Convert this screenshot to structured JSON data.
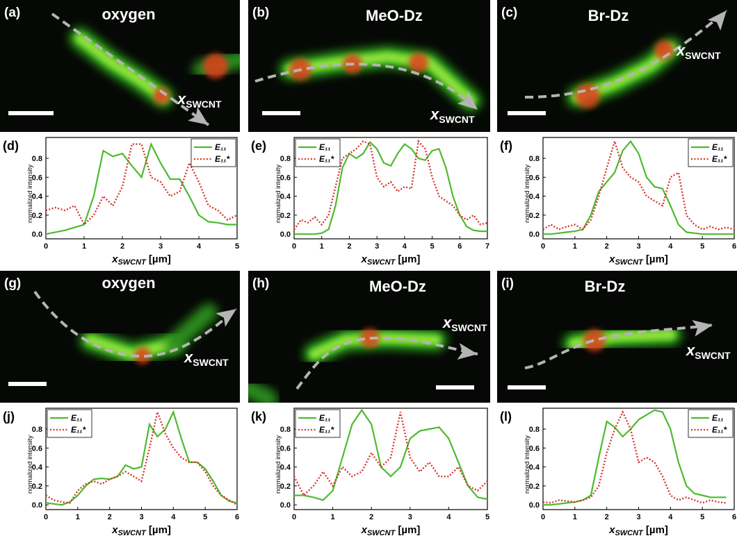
{
  "images": [
    {
      "label": "(a)",
      "title": "oxygen",
      "axis_label": {
        "symbol": "x",
        "subscript": "SWCNT"
      }
    },
    {
      "label": "(b)",
      "title": "MeO-Dz",
      "axis_label": {
        "symbol": "x",
        "subscript": "SWCNT"
      }
    },
    {
      "label": "(c)",
      "title": "Br-Dz",
      "axis_label": {
        "symbol": "x",
        "subscript": "SWCNT"
      }
    },
    {
      "label": "(g)",
      "title": "oxygen",
      "axis_label": {
        "symbol": "x",
        "subscript": "SWCNT"
      }
    },
    {
      "label": "(h)",
      "title": "MeO-Dz",
      "axis_label": {
        "symbol": "x",
        "subscript": "SWCNT"
      }
    },
    {
      "label": "(i)",
      "title": "Br-Dz",
      "axis_label": {
        "symbol": "x",
        "subscript": "SWCNT"
      }
    }
  ],
  "chart_data": [
    {
      "type": "line",
      "panel": "(d)",
      "ylabel": "normalized intensity",
      "xlabel": {
        "symbol": "x",
        "subscript": "SWCNT",
        "unit": " [µm]"
      },
      "x": [
        0,
        0.25,
        0.5,
        0.75,
        1,
        1.25,
        1.5,
        1.75,
        2,
        2.25,
        2.5,
        2.75,
        3,
        3.25,
        3.5,
        3.75,
        4,
        4.25,
        4.5,
        4.75,
        5
      ],
      "series": [
        {
          "name": "E₁₁",
          "color": "#4cba2e",
          "style": "solid",
          "values": [
            0.0,
            0.02,
            0.04,
            0.07,
            0.1,
            0.4,
            0.88,
            0.82,
            0.85,
            0.72,
            0.6,
            0.95,
            0.75,
            0.58,
            0.58,
            0.4,
            0.2,
            0.13,
            0.12,
            0.1,
            0.1
          ]
        },
        {
          "name": "E₁₁*",
          "color": "#d8332a",
          "style": "dotted",
          "values": [
            0.25,
            0.28,
            0.25,
            0.3,
            0.1,
            0.2,
            0.4,
            0.3,
            0.5,
            0.95,
            0.95,
            0.6,
            0.55,
            0.4,
            0.45,
            0.75,
            0.55,
            0.3,
            0.25,
            0.15,
            0.2
          ]
        }
      ],
      "xlim": [
        0,
        5
      ],
      "ylim": [
        -0.05,
        1.02
      ],
      "xticks": [
        0,
        1,
        2,
        3,
        4,
        5
      ],
      "yticks": [
        {
          "value": 0,
          "label": "0.0"
        },
        0.2,
        0.4,
        0.6,
        0.8
      ],
      "legend": "upper right"
    },
    {
      "type": "line",
      "panel": "(e)",
      "ylabel": "normalized intensity",
      "xlabel": {
        "symbol": "x",
        "subscript": "SWCNT",
        "unit": " [µm]"
      },
      "x": [
        0,
        0.25,
        0.5,
        0.75,
        1,
        1.25,
        1.5,
        1.75,
        2,
        2.25,
        2.5,
        2.75,
        3,
        3.25,
        3.5,
        3.75,
        4,
        4.25,
        4.5,
        4.75,
        5,
        5.25,
        5.5,
        5.75,
        6,
        6.25,
        6.5,
        6.75,
        7
      ],
      "series": [
        {
          "name": "E₁₁",
          "color": "#4cba2e",
          "style": "solid",
          "values": [
            0,
            0,
            0,
            0,
            0.01,
            0.05,
            0.3,
            0.7,
            0.85,
            0.8,
            0.85,
            0.97,
            0.9,
            0.75,
            0.72,
            0.85,
            0.95,
            0.9,
            0.8,
            0.78,
            0.88,
            0.9,
            0.7,
            0.4,
            0.2,
            0.08,
            0.04,
            0.03,
            0.03
          ]
        },
        {
          "name": "E₁₁*",
          "color": "#d8332a",
          "style": "dotted",
          "values": [
            0.05,
            0.15,
            0.12,
            0.18,
            0.1,
            0.2,
            0.5,
            0.8,
            0.85,
            0.9,
            0.98,
            0.95,
            0.6,
            0.5,
            0.55,
            0.45,
            0.5,
            0.48,
            0.98,
            0.9,
            0.6,
            0.4,
            0.35,
            0.3,
            0.2,
            0.15,
            0.2,
            0.1,
            0.12
          ]
        }
      ],
      "xlim": [
        0,
        7
      ],
      "ylim": [
        -0.05,
        1.02
      ],
      "xticks": [
        0,
        1,
        2,
        3,
        4,
        5,
        6,
        7
      ],
      "yticks": [
        {
          "value": 0,
          "label": "0.0"
        },
        0.2,
        0.4,
        0.6,
        0.8
      ],
      "legend": "upper left"
    },
    {
      "type": "line",
      "panel": "(f)",
      "ylabel": "normalized intensity",
      "xlabel": {
        "symbol": "x",
        "subscript": "SWCNT",
        "unit": " [µm]"
      },
      "x": [
        0,
        0.25,
        0.5,
        0.75,
        1,
        1.25,
        1.5,
        1.75,
        2,
        2.25,
        2.5,
        2.75,
        3,
        3.25,
        3.5,
        3.75,
        4,
        4.25,
        4.5,
        4.75,
        5,
        5.25,
        5.5,
        5.75,
        6
      ],
      "series": [
        {
          "name": "E₁₁",
          "color": "#4cba2e",
          "style": "solid",
          "values": [
            0,
            0,
            0.01,
            0.02,
            0.03,
            0.05,
            0.2,
            0.45,
            0.55,
            0.65,
            0.88,
            0.98,
            0.85,
            0.6,
            0.5,
            0.48,
            0.3,
            0.1,
            0.02,
            0.01,
            0,
            0,
            0,
            0,
            0
          ]
        },
        {
          "name": "E₁₁*",
          "color": "#d8332a",
          "style": "dotted",
          "values": [
            0.05,
            0.1,
            0.05,
            0.08,
            0.1,
            0.05,
            0.15,
            0.4,
            0.7,
            0.98,
            0.7,
            0.6,
            0.55,
            0.4,
            0.35,
            0.3,
            0.6,
            0.65,
            0.2,
            0.1,
            0.05,
            0.08,
            0.05,
            0.07,
            0.05
          ]
        }
      ],
      "xlim": [
        0,
        6
      ],
      "ylim": [
        -0.05,
        1.02
      ],
      "xticks": [
        0,
        1,
        2,
        3,
        4,
        5,
        6
      ],
      "yticks": [
        {
          "value": 0,
          "label": "0.0"
        },
        0.2,
        0.4,
        0.6,
        0.8
      ],
      "legend": "upper right"
    },
    {
      "type": "line",
      "panel": "(j)",
      "ylabel": "normalized intensity",
      "xlabel": {
        "symbol": "x",
        "subscript": "SWCNT",
        "unit": " [µm]"
      },
      "x": [
        0,
        0.25,
        0.5,
        0.75,
        1,
        1.25,
        1.5,
        1.75,
        2,
        2.25,
        2.5,
        2.75,
        3,
        3.25,
        3.5,
        3.75,
        4,
        4.25,
        4.5,
        4.75,
        5,
        5.25,
        5.5,
        5.75,
        6
      ],
      "series": [
        {
          "name": "E₁₁",
          "color": "#4cba2e",
          "style": "solid",
          "values": [
            0.02,
            0.01,
            0,
            0.03,
            0.1,
            0.2,
            0.27,
            0.28,
            0.27,
            0.3,
            0.42,
            0.38,
            0.4,
            0.85,
            0.72,
            0.8,
            0.98,
            0.7,
            0.45,
            0.45,
            0.38,
            0.25,
            0.1,
            0.04,
            0.02
          ]
        },
        {
          "name": "E₁₁*",
          "color": "#d8332a",
          "style": "dotted",
          "values": [
            0.1,
            0.05,
            0.03,
            0.02,
            0.15,
            0.22,
            0.25,
            0.22,
            0.27,
            0.3,
            0.35,
            0.3,
            0.25,
            0.6,
            0.98,
            0.75,
            0.6,
            0.5,
            0.45,
            0.45,
            0.35,
            0.2,
            0.1,
            0.05,
            0.0
          ]
        }
      ],
      "xlim": [
        0,
        6
      ],
      "ylim": [
        -0.05,
        1.02
      ],
      "xticks": [
        0,
        1,
        2,
        3,
        4,
        5,
        6
      ],
      "yticks": [
        {
          "value": 0,
          "label": "0.0"
        },
        0.2,
        0.4,
        0.6,
        0.8
      ],
      "legend": "upper left"
    },
    {
      "type": "line",
      "panel": "(k)",
      "ylabel": "normalized intensity",
      "xlabel": {
        "symbol": "x",
        "subscript": "SWCNT",
        "unit": " [µm]"
      },
      "x": [
        0,
        0.25,
        0.5,
        0.75,
        1,
        1.25,
        1.5,
        1.75,
        2,
        2.25,
        2.5,
        2.75,
        3,
        3.25,
        3.5,
        3.75,
        4,
        4.25,
        4.5,
        4.75,
        5
      ],
      "series": [
        {
          "name": "E₁₁",
          "color": "#4cba2e",
          "style": "solid",
          "values": [
            0.1,
            0.1,
            0.08,
            0.05,
            0.15,
            0.5,
            0.85,
            1.0,
            0.85,
            0.4,
            0.3,
            0.4,
            0.7,
            0.78,
            0.8,
            0.82,
            0.7,
            0.45,
            0.2,
            0.08,
            0.06
          ]
        },
        {
          "name": "E₁₁*",
          "color": "#d8332a",
          "style": "dotted",
          "values": [
            0.3,
            0.1,
            0.2,
            0.35,
            0.2,
            0.4,
            0.3,
            0.35,
            0.55,
            0.4,
            0.5,
            0.98,
            0.5,
            0.35,
            0.45,
            0.3,
            0.3,
            0.4,
            0.2,
            0.15,
            0.25
          ]
        }
      ],
      "xlim": [
        0,
        5
      ],
      "ylim": [
        -0.05,
        1.02
      ],
      "xticks": [
        0,
        1,
        2,
        3,
        4,
        5
      ],
      "yticks": [
        {
          "value": 0,
          "label": "0.0"
        },
        0.2,
        0.4,
        0.6,
        0.8
      ],
      "legend": "upper left"
    },
    {
      "type": "line",
      "panel": "(l)",
      "ylabel": "normalized intensity",
      "xlabel": {
        "symbol": "x",
        "subscript": "SWCNT",
        "unit": " [µm]"
      },
      "x": [
        0,
        0.25,
        0.5,
        0.75,
        1,
        1.25,
        1.5,
        1.75,
        2,
        2.25,
        2.5,
        2.75,
        3,
        3.25,
        3.5,
        3.75,
        4,
        4.25,
        4.5,
        4.75,
        5,
        5.25,
        5.5,
        5.75
      ],
      "series": [
        {
          "name": "E₁₁",
          "color": "#4cba2e",
          "style": "solid",
          "values": [
            0,
            0,
            0.01,
            0.02,
            0.03,
            0.05,
            0.1,
            0.5,
            0.88,
            0.82,
            0.72,
            0.8,
            0.9,
            0.95,
            1.0,
            0.98,
            0.8,
            0.45,
            0.2,
            0.12,
            0.1,
            0.08,
            0.08,
            0.08
          ]
        },
        {
          "name": "E₁₁*",
          "color": "#d8332a",
          "style": "dotted",
          "values": [
            0.03,
            0.02,
            0.05,
            0.04,
            0.03,
            0.05,
            0.08,
            0.2,
            0.55,
            0.8,
            0.98,
            0.8,
            0.45,
            0.5,
            0.45,
            0.3,
            0.1,
            0.05,
            0.08,
            0.05,
            0.02,
            0.05,
            0.03,
            0.02
          ]
        }
      ],
      "xlim": [
        0,
        6
      ],
      "ylim": [
        -0.05,
        1.02
      ],
      "xticks": [
        0,
        1,
        2,
        3,
        4,
        5,
        6
      ],
      "yticks": [
        {
          "value": 0,
          "label": "0.0"
        },
        0.2,
        0.4,
        0.6,
        0.8
      ],
      "legend": "upper right"
    }
  ]
}
